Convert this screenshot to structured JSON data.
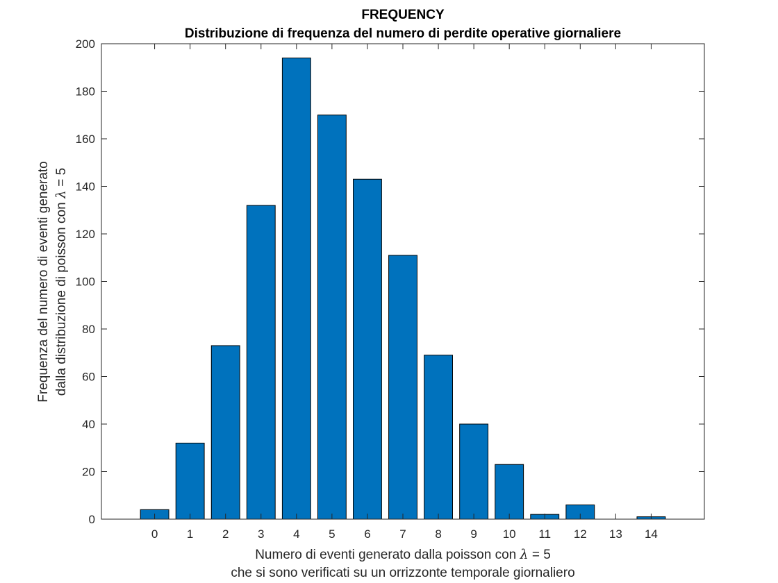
{
  "chart_data": {
    "type": "bar",
    "title": "FREQUENCY",
    "subtitle": "Distribuzione di frequenza del numero di perdite operative giornaliere",
    "xlabel": {
      "line1_prefix": "Numero di eventi generato dalla poisson con ",
      "symbol": "λ",
      "line1_suffix": " = 5",
      "line2": "che si sono verificati su un orrizzonte temporale giornaliero"
    },
    "ylabel": {
      "line1": "Frequenza del numero di eventi generato",
      "line2_prefix": "dalla distribuzione di poisson con ",
      "symbol": "λ",
      "line2_suffix": " = 5"
    },
    "categories": [
      "0",
      "1",
      "2",
      "3",
      "4",
      "5",
      "6",
      "7",
      "8",
      "9",
      "10",
      "11",
      "12",
      "13",
      "14"
    ],
    "values": [
      4,
      32,
      73,
      132,
      194,
      170,
      143,
      111,
      69,
      40,
      23,
      2,
      6,
      0,
      1
    ],
    "ylim": [
      0,
      200
    ],
    "yticks": [
      0,
      20,
      40,
      60,
      80,
      100,
      120,
      140,
      160,
      180,
      200
    ],
    "bar_color": "#0072bd",
    "grid": false,
    "legend": "none"
  }
}
